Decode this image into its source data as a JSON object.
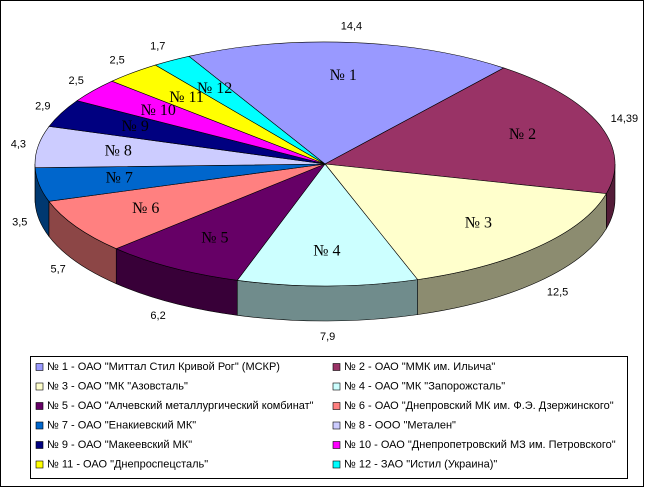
{
  "chart_data": {
    "type": "pie",
    "categories": [
      "№ 1 - ОАО \"Миттал Стил Кривой Рог\" (МСКР)",
      "№ 2 - ОАО \"ММК им. Ильича\"",
      "№ 3 - ОАО \"МК \"Азовсталь\"",
      "№ 4 - ОАО \"МК \"Запорожсталь\"",
      "№ 5 - ОАО \"Алчевский металлургический комбинат\"",
      "№ 6 - ОАО \"Днепровский МК им. Ф.Э. Дзержинского\"",
      "№ 7 - ОАО \"Енакиевский МК\"",
      "№ 8 - ООО \"Метален\"",
      "№ 9 - ОАО \"Макеевский МК\"",
      "№ 10 - ОАО \"Днепропетровский МЗ им. Петровского\"",
      "№ 11 - ОАО \"Днепроспецсталь\"",
      "№ 12 - ЗАО \"Истил (Украина)\""
    ],
    "short_labels": [
      "№ 1",
      "№ 2",
      "№ 3",
      "№ 4",
      "№ 5",
      "№ 6",
      "№ 7",
      "№ 8",
      "№ 9",
      "№ 10",
      "№ 11",
      "№ 12"
    ],
    "values": [
      14.4,
      14.39,
      12.5,
      7.9,
      6.2,
      5.7,
      3.5,
      4.3,
      2.9,
      2.5,
      2.5,
      1.7
    ],
    "value_labels": [
      "14,4",
      "14,39",
      "12,5",
      "7,9",
      "6,2",
      "5,7",
      "3,5",
      "4,3",
      "2,9",
      "2,5",
      "2,5",
      "1,7"
    ],
    "colors": [
      "#9999ff",
      "#993366",
      "#ffffcc",
      "#ccffff",
      "#660066",
      "#ff8080",
      "#0066cc",
      "#ccccff",
      "#000080",
      "#ff00ff",
      "#ffff00",
      "#00ffff"
    ],
    "legend": "bottom"
  }
}
